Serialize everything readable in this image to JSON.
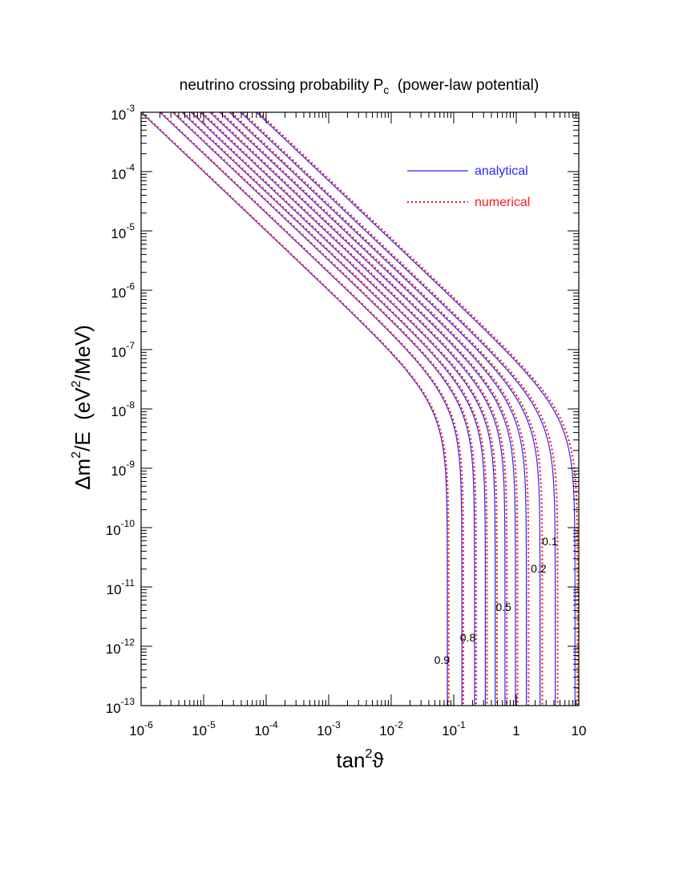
{
  "chart_data": {
    "type": "line",
    "title_main": "neutrino crossing probability P",
    "title_sub": "c",
    "title_tail": "  (power-law potential)",
    "xlabel_main": "tan",
    "xlabel_sup": "2",
    "xlabel_tail": "ϑ",
    "ylabel_parts": [
      "Δm",
      "2",
      "/E  (eV",
      "2",
      "/MeV)"
    ],
    "x_scale": "log",
    "y_scale": "log",
    "xlim": [
      1e-06,
      10
    ],
    "ylim": [
      1e-13,
      0.001
    ],
    "x_ticks": [
      {
        "base": "10",
        "exp": "-6",
        "value": 1e-06
      },
      {
        "base": "10",
        "exp": "-5",
        "value": 1e-05
      },
      {
        "base": "10",
        "exp": "-4",
        "value": 0.0001
      },
      {
        "base": "10",
        "exp": "-3",
        "value": 0.001
      },
      {
        "base": "10",
        "exp": "-2",
        "value": 0.01
      },
      {
        "base": "10",
        "exp": "-1",
        "value": 0.1
      },
      {
        "base": "1",
        "exp": "",
        "value": 1
      },
      {
        "base": "10",
        "exp": "",
        "value": 10
      }
    ],
    "y_ticks": [
      {
        "base": "10",
        "exp": "-3",
        "value": 0.001
      },
      {
        "base": "10",
        "exp": "-4",
        "value": 0.0001
      },
      {
        "base": "10",
        "exp": "-5",
        "value": 1e-05
      },
      {
        "base": "10",
        "exp": "-6",
        "value": 1e-06
      },
      {
        "base": "10",
        "exp": "-7",
        "value": 1e-07
      },
      {
        "base": "10",
        "exp": "-8",
        "value": 1e-08
      },
      {
        "base": "10",
        "exp": "-9",
        "value": 1e-09
      },
      {
        "base": "10",
        "exp": "-10",
        "value": 1e-10
      },
      {
        "base": "10",
        "exp": "-11",
        "value": 1e-11
      },
      {
        "base": "10",
        "exp": "-12",
        "value": 1e-12
      },
      {
        "base": "10",
        "exp": "-13",
        "value": 1e-13
      }
    ],
    "legend": [
      {
        "label": "analytical",
        "style": "solid",
        "color": "#2a2aff"
      },
      {
        "label": "numerical",
        "style": "dotted",
        "color": "#ff1a1a"
      }
    ],
    "legend_position": "top-right",
    "grid": false,
    "curves": [
      {
        "label": "0.9",
        "x_top": 1e-06,
        "asymptote_x": 0.079
      },
      {
        "label": "",
        "x_top": 2e-06,
        "asymptote_x": 0.135
      },
      {
        "label": "0.8",
        "x_top": 3.2e-06,
        "asymptote_x": 0.215
      },
      {
        "label": "",
        "x_top": 4.5e-06,
        "asymptote_x": 0.32
      },
      {
        "label": "",
        "x_top": 6.3e-06,
        "asymptote_x": 0.46
      },
      {
        "label": "0.5",
        "x_top": 8.9e-06,
        "asymptote_x": 0.66
      },
      {
        "label": "",
        "x_top": 1.26e-05,
        "asymptote_x": 0.97
      },
      {
        "label": "",
        "x_top": 1.8e-05,
        "asymptote_x": 1.45
      },
      {
        "label": "0.2",
        "x_top": 2.6e-05,
        "asymptote_x": 2.4
      },
      {
        "label": "0.1",
        "x_top": 3.9e-05,
        "asymptote_x": 4.2
      },
      {
        "label": "",
        "x_top": 7e-05,
        "asymptote_x": 8.7
      }
    ]
  }
}
